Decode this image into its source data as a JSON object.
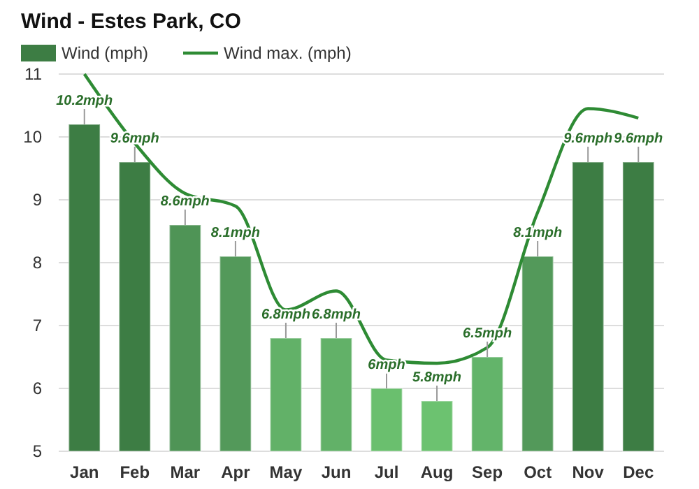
{
  "chart_data": {
    "type": "bar",
    "title": "Wind - Estes Park, CO",
    "categories": [
      "Jan",
      "Feb",
      "Mar",
      "Apr",
      "May",
      "Jun",
      "Jul",
      "Aug",
      "Sep",
      "Oct",
      "Nov",
      "Dec"
    ],
    "series": [
      {
        "name": "Wind (mph)",
        "color": "#3d7d44",
        "colors": [
          "#3d7d44",
          "#3d7d44",
          "#4f9456",
          "#53995a",
          "#62b168",
          "#62b168",
          "#6abf6e",
          "#6cc270",
          "#63b46a",
          "#53995a",
          "#3d7d44",
          "#3d7d44"
        ],
        "values": [
          10.2,
          9.6,
          8.6,
          8.1,
          6.8,
          6.8,
          6.0,
          5.8,
          6.5,
          8.1,
          9.6,
          9.6
        ],
        "value_labels": [
          "10.2mph",
          "9.6mph",
          "8.6mph",
          "8.1mph",
          "6.8mph",
          "6.8mph",
          "6mph",
          "5.8mph",
          "6.5mph",
          "8.1mph",
          "9.6mph",
          "9.6mph"
        ]
      },
      {
        "name": "Wind max. (mph)",
        "type": "line",
        "color": "#2e8b34",
        "values": [
          11.0,
          9.9,
          9.1,
          8.9,
          7.25,
          7.55,
          6.45,
          6.4,
          6.65,
          8.8,
          10.45,
          10.3
        ]
      }
    ],
    "ylim": [
      5,
      11
    ],
    "yticks": [
      5,
      6,
      7,
      8,
      9,
      10,
      11
    ],
    "grid": "y",
    "legend": "top left"
  }
}
